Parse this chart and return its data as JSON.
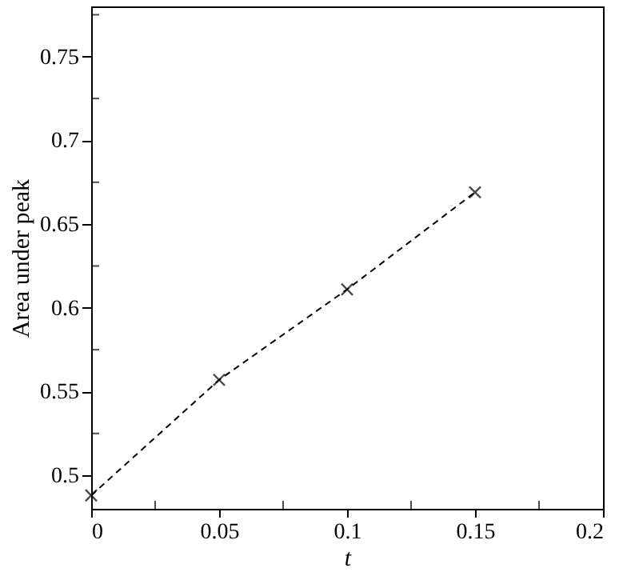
{
  "chart_data": {
    "type": "line",
    "xlabel": "t",
    "ylabel": "Area under peak",
    "x": [
      0,
      0.05,
      0.1,
      0.15
    ],
    "series": [
      {
        "color": "#000000",
        "values": [
          0.488,
          0.557,
          0.611,
          0.669
        ]
      }
    ],
    "marker": "cross",
    "line_style": "dashed",
    "grid": false,
    "xlim": [
      0,
      0.2
    ],
    "ylim": [
      0.48,
      0.78
    ],
    "xticks": [
      0,
      {
        "value": 0.025,
        "label": null
      },
      0.05,
      {
        "value": 0.075,
        "label": null
      },
      0.1,
      {
        "value": 0.125,
        "label": null
      },
      0.15,
      {
        "value": 0.175,
        "label": null
      },
      0.2
    ],
    "yticks": [
      0.5,
      {
        "value": 0.525,
        "label": null
      },
      0.55,
      {
        "value": 0.575,
        "label": null
      },
      0.6,
      {
        "value": 0.625,
        "label": null
      },
      0.65,
      {
        "value": 0.675,
        "label": null
      },
      0.7,
      {
        "value": 0.725,
        "label": null
      },
      0.75,
      {
        "value": 0.775,
        "label": null
      }
    ]
  }
}
